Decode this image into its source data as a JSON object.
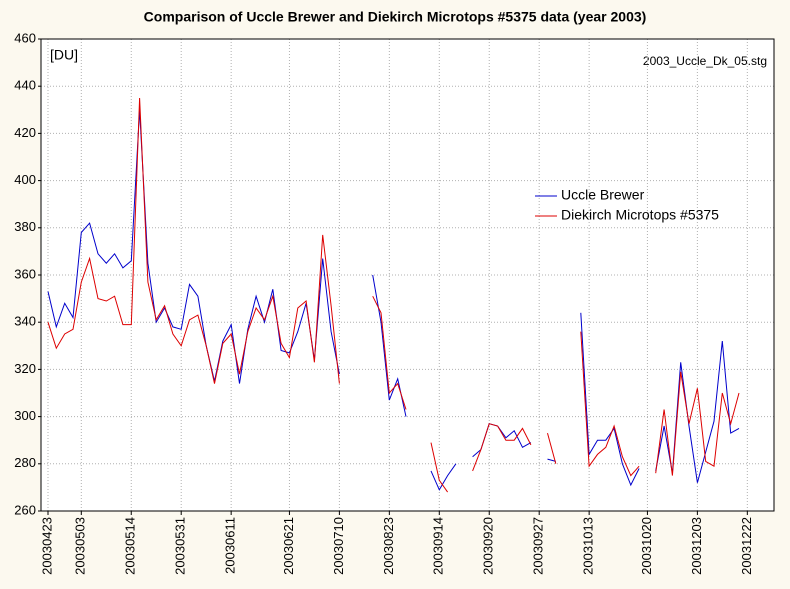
{
  "chart_data": {
    "type": "line",
    "title": "Comparison of Uccle Brewer and Diekirch Microtops #5375 data (year 2003)",
    "annotations": [
      "[DU]",
      "2003_Uccle_Dk_05.stg"
    ],
    "categories": [
      "20030423",
      null,
      null,
      null,
      "20030503",
      null,
      null,
      null,
      null,
      null,
      "20030514",
      null,
      null,
      null,
      null,
      null,
      "20030531",
      null,
      null,
      null,
      null,
      null,
      "20030611",
      null,
      null,
      null,
      null,
      null,
      null,
      "20030621",
      null,
      null,
      null,
      null,
      null,
      "20030710",
      null,
      null,
      null,
      null,
      null,
      "20030823",
      null,
      null,
      null,
      null,
      null,
      "20030914",
      null,
      null,
      null,
      null,
      null,
      "20030920",
      null,
      null,
      null,
      null,
      null,
      "20030927",
      null,
      null,
      null,
      null,
      null,
      "20031013",
      null,
      null,
      null,
      null,
      null,
      null,
      "20031020",
      null,
      null,
      null,
      null,
      null,
      "20031203",
      null,
      null,
      null,
      null,
      null,
      "20031222"
    ],
    "series": [
      {
        "name": "Uccle Brewer",
        "color": "#0000cc",
        "values": [
          353,
          338,
          348,
          342,
          378,
          382,
          369,
          365,
          369,
          363,
          366,
          430,
          365,
          340,
          346,
          338,
          337,
          356,
          351,
          330,
          315,
          332,
          339,
          314,
          337,
          351,
          340,
          354,
          328,
          327,
          336,
          348,
          324,
          367,
          336,
          318,
          null,
          null,
          null,
          360,
          340,
          307,
          316,
          300,
          null,
          null,
          277,
          269,
          275,
          280,
          null,
          283,
          286,
          297,
          296,
          291,
          294,
          287,
          289,
          null,
          282,
          281,
          null,
          null,
          344,
          284,
          290,
          290,
          295,
          280,
          271,
          278,
          null,
          277,
          296,
          276,
          323,
          296,
          272,
          285,
          298,
          332,
          293,
          295,
          null
        ]
      },
      {
        "name": "Diekirch Microtops #5375",
        "color": "#dd0000",
        "values": [
          340,
          329,
          335,
          337,
          357,
          367,
          350,
          349,
          351,
          339,
          339,
          435,
          357,
          341,
          347,
          335,
          330,
          341,
          343,
          330,
          314,
          331,
          335,
          318,
          336,
          346,
          341,
          351,
          331,
          325,
          346,
          349,
          323,
          377,
          347,
          314,
          null,
          null,
          null,
          351,
          344,
          310,
          314,
          303,
          null,
          null,
          289,
          273,
          268,
          null,
          null,
          277,
          286,
          297,
          296,
          290,
          290,
          295,
          288,
          null,
          293,
          280,
          null,
          null,
          336,
          279,
          284,
          287,
          296,
          283,
          275,
          279,
          null,
          276,
          303,
          275,
          319,
          297,
          312,
          281,
          279,
          310,
          297,
          310,
          null
        ]
      }
    ],
    "ylim": [
      260,
      460
    ],
    "yticks": [
      260,
      280,
      300,
      320,
      340,
      360,
      380,
      400,
      420,
      440,
      460
    ],
    "grid": true
  }
}
